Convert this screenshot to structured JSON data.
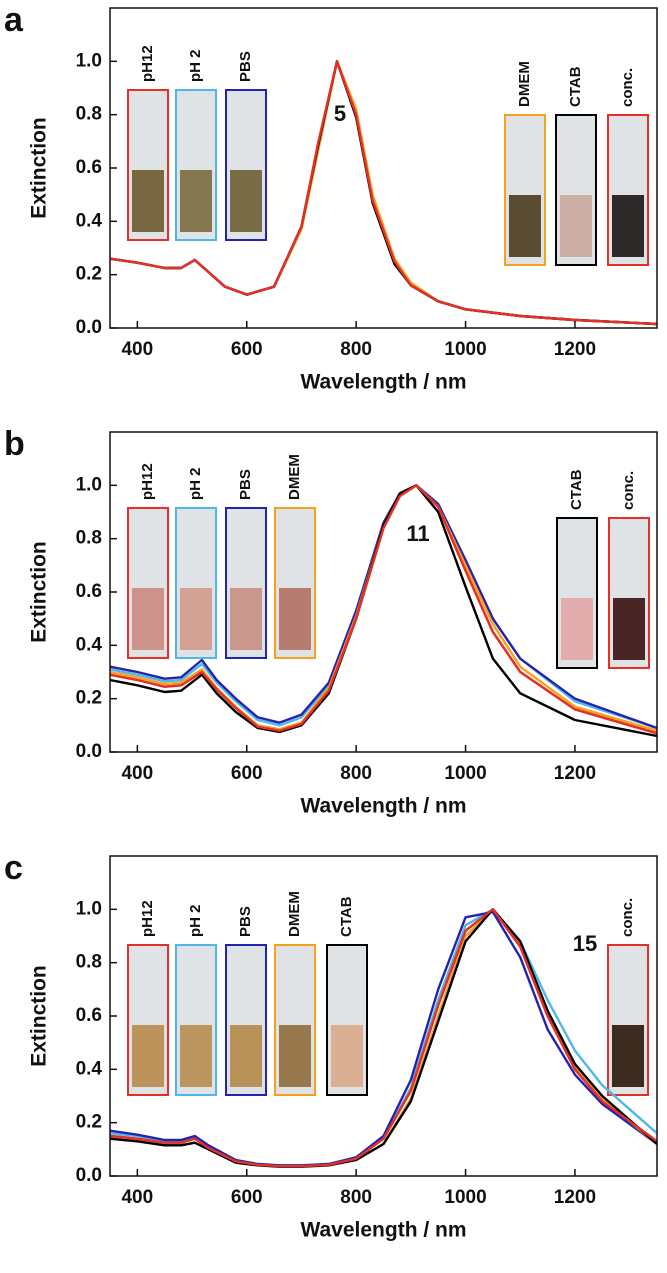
{
  "chart_data": [
    {
      "type": "line",
      "panel_label": "a",
      "annotation": "5",
      "x_label": "Wavelength / nm",
      "y_label": "Extinction",
      "x": [
        350,
        400,
        450,
        480,
        505,
        530,
        560,
        600,
        650,
        700,
        730,
        765,
        800,
        830,
        870,
        900,
        950,
        1000,
        1100,
        1200,
        1350
      ],
      "xlim": [
        350,
        1350
      ],
      "ylim": [
        0,
        1.2
      ],
      "xticks": [
        400,
        600,
        800,
        1000,
        1200
      ],
      "yticks": [
        {
          "value": 0,
          "label": "0.0"
        },
        0.2,
        0.4,
        0.6,
        0.8,
        {
          "value": 1,
          "label": "1.0"
        }
      ],
      "series": [
        {
          "name": "pH12",
          "color": "#e53028",
          "values": [
            0.26,
            0.245,
            0.225,
            0.225,
            0.255,
            0.21,
            0.155,
            0.125,
            0.155,
            0.38,
            0.68,
            1.0,
            0.8,
            0.48,
            0.25,
            0.16,
            0.1,
            0.07,
            0.045,
            0.03,
            0.015
          ]
        },
        {
          "name": "pH 2",
          "color": "#4fb8e8",
          "values": [
            0.26,
            0.245,
            0.225,
            0.225,
            0.255,
            0.21,
            0.155,
            0.125,
            0.155,
            0.38,
            0.68,
            1.0,
            0.8,
            0.49,
            0.25,
            0.16,
            0.1,
            0.07,
            0.045,
            0.03,
            0.015
          ]
        },
        {
          "name": "PBS",
          "color": "#2323b0",
          "values": [
            0.26,
            0.245,
            0.225,
            0.225,
            0.255,
            0.21,
            0.155,
            0.125,
            0.155,
            0.38,
            0.68,
            1.0,
            0.8,
            0.48,
            0.25,
            0.16,
            0.1,
            0.07,
            0.045,
            0.03,
            0.015
          ]
        },
        {
          "name": "DMEM",
          "color": "#f5a21c",
          "values": [
            0.26,
            0.245,
            0.225,
            0.225,
            0.255,
            0.21,
            0.155,
            0.125,
            0.155,
            0.37,
            0.66,
            1.0,
            0.82,
            0.5,
            0.26,
            0.17,
            0.1,
            0.07,
            0.045,
            0.03,
            0.015
          ]
        },
        {
          "name": "CTAB",
          "color": "#000000",
          "values": [
            0.26,
            0.245,
            0.225,
            0.225,
            0.255,
            0.21,
            0.155,
            0.125,
            0.155,
            0.38,
            0.68,
            1.0,
            0.79,
            0.47,
            0.24,
            0.16,
            0.1,
            0.07,
            0.045,
            0.03,
            0.015
          ]
        },
        {
          "name": "conc.",
          "color": "#e53028",
          "values": [
            0.26,
            0.245,
            0.225,
            0.225,
            0.255,
            0.21,
            0.155,
            0.125,
            0.155,
            0.38,
            0.69,
            1.0,
            0.8,
            0.48,
            0.25,
            0.16,
            0.1,
            0.07,
            0.045,
            0.03,
            0.015
          ]
        }
      ]
    },
    {
      "type": "line",
      "panel_label": "b",
      "annotation": "11",
      "x_label": "Wavelength / nm",
      "y_label": "Extinction",
      "x": [
        350,
        400,
        450,
        480,
        518,
        545,
        580,
        620,
        660,
        700,
        750,
        800,
        850,
        880,
        910,
        950,
        1000,
        1050,
        1100,
        1200,
        1350
      ],
      "xlim": [
        350,
        1350
      ],
      "ylim": [
        0,
        1.2
      ],
      "xticks": [
        400,
        600,
        800,
        1000,
        1200
      ],
      "yticks": [
        {
          "value": 0,
          "label": "0.0"
        },
        0.2,
        0.4,
        0.6,
        0.8,
        {
          "value": 1,
          "label": "1.0"
        }
      ],
      "series": [
        {
          "name": "pH12",
          "color": "#e53028",
          "values": [
            0.29,
            0.27,
            0.245,
            0.25,
            0.3,
            0.235,
            0.165,
            0.095,
            0.08,
            0.105,
            0.23,
            0.5,
            0.84,
            0.96,
            1.0,
            0.92,
            0.68,
            0.45,
            0.3,
            0.16,
            0.07
          ]
        },
        {
          "name": "pH 2",
          "color": "#4fb8e8",
          "values": [
            0.31,
            0.29,
            0.265,
            0.27,
            0.33,
            0.26,
            0.19,
            0.12,
            0.1,
            0.13,
            0.25,
            0.52,
            0.85,
            0.97,
            1.0,
            0.93,
            0.71,
            0.5,
            0.35,
            0.19,
            0.09
          ]
        },
        {
          "name": "PBS",
          "color": "#2323b0",
          "values": [
            0.32,
            0.3,
            0.275,
            0.28,
            0.345,
            0.27,
            0.2,
            0.13,
            0.11,
            0.14,
            0.26,
            0.53,
            0.86,
            0.97,
            1.0,
            0.93,
            0.72,
            0.5,
            0.35,
            0.2,
            0.09
          ]
        },
        {
          "name": "DMEM",
          "color": "#f5a21c",
          "values": [
            0.3,
            0.28,
            0.255,
            0.26,
            0.31,
            0.24,
            0.17,
            0.1,
            0.085,
            0.11,
            0.24,
            0.51,
            0.85,
            0.97,
            1.0,
            0.92,
            0.7,
            0.48,
            0.32,
            0.17,
            0.08
          ]
        },
        {
          "name": "CTAB",
          "color": "#000000",
          "values": [
            0.27,
            0.25,
            0.225,
            0.23,
            0.29,
            0.22,
            0.15,
            0.09,
            0.075,
            0.1,
            0.22,
            0.5,
            0.85,
            0.97,
            1.0,
            0.9,
            0.62,
            0.35,
            0.22,
            0.12,
            0.06
          ]
        },
        {
          "name": "conc.",
          "color": "#e53028",
          "values": [
            0.29,
            0.27,
            0.245,
            0.25,
            0.3,
            0.235,
            0.165,
            0.095,
            0.08,
            0.105,
            0.23,
            0.5,
            0.84,
            0.96,
            1.0,
            0.92,
            0.68,
            0.45,
            0.3,
            0.16,
            0.07
          ]
        }
      ]
    },
    {
      "type": "line",
      "panel_label": "c",
      "annotation": "15",
      "x_label": "Wavelength / nm",
      "y_label": "Extinction",
      "x": [
        350,
        400,
        450,
        480,
        505,
        530,
        580,
        620,
        660,
        700,
        750,
        800,
        850,
        900,
        950,
        1000,
        1050,
        1100,
        1150,
        1200,
        1250,
        1350
      ],
      "xlim": [
        350,
        1350
      ],
      "ylim": [
        0,
        1.2
      ],
      "xticks": [
        400,
        600,
        800,
        1000,
        1200
      ],
      "yticks": [
        {
          "value": 0,
          "label": "0.0"
        },
        0.2,
        0.4,
        0.6,
        0.8,
        {
          "value": 1,
          "label": "1.0"
        }
      ],
      "series": [
        {
          "name": "pH12",
          "color": "#e53028",
          "values": [
            0.15,
            0.14,
            0.125,
            0.125,
            0.14,
            0.105,
            0.055,
            0.042,
            0.037,
            0.037,
            0.042,
            0.065,
            0.14,
            0.32,
            0.64,
            0.92,
            1.0,
            0.86,
            0.6,
            0.4,
            0.28,
            0.13
          ]
        },
        {
          "name": "pH 2",
          "color": "#4fb8e8",
          "values": [
            0.16,
            0.15,
            0.13,
            0.13,
            0.145,
            0.11,
            0.058,
            0.044,
            0.039,
            0.039,
            0.044,
            0.068,
            0.14,
            0.33,
            0.66,
            0.94,
            1.0,
            0.88,
            0.66,
            0.47,
            0.34,
            0.16
          ]
        },
        {
          "name": "PBS",
          "color": "#2323b0",
          "values": [
            0.17,
            0.155,
            0.135,
            0.135,
            0.15,
            0.115,
            0.06,
            0.045,
            0.04,
            0.04,
            0.045,
            0.07,
            0.15,
            0.36,
            0.7,
            0.97,
            0.99,
            0.82,
            0.55,
            0.38,
            0.27,
            0.12
          ]
        },
        {
          "name": "DMEM",
          "color": "#f5a21c",
          "values": [
            0.14,
            0.13,
            0.115,
            0.115,
            0.125,
            0.1,
            0.05,
            0.04,
            0.035,
            0.035,
            0.04,
            0.06,
            0.12,
            0.29,
            0.6,
            0.9,
            1.0,
            0.87,
            0.6,
            0.41,
            0.29,
            0.12
          ]
        },
        {
          "name": "CTAB",
          "color": "#000000",
          "values": [
            0.14,
            0.13,
            0.115,
            0.115,
            0.125,
            0.1,
            0.05,
            0.04,
            0.035,
            0.035,
            0.04,
            0.06,
            0.12,
            0.28,
            0.58,
            0.88,
            1.0,
            0.88,
            0.62,
            0.42,
            0.3,
            0.12
          ]
        },
        {
          "name": "conc.",
          "color": "#e53028",
          "values": [
            0.15,
            0.14,
            0.125,
            0.125,
            0.14,
            0.105,
            0.055,
            0.042,
            0.037,
            0.037,
            0.042,
            0.065,
            0.14,
            0.32,
            0.64,
            0.92,
            1.0,
            0.86,
            0.6,
            0.4,
            0.28,
            0.13
          ]
        }
      ]
    }
  ]
}
